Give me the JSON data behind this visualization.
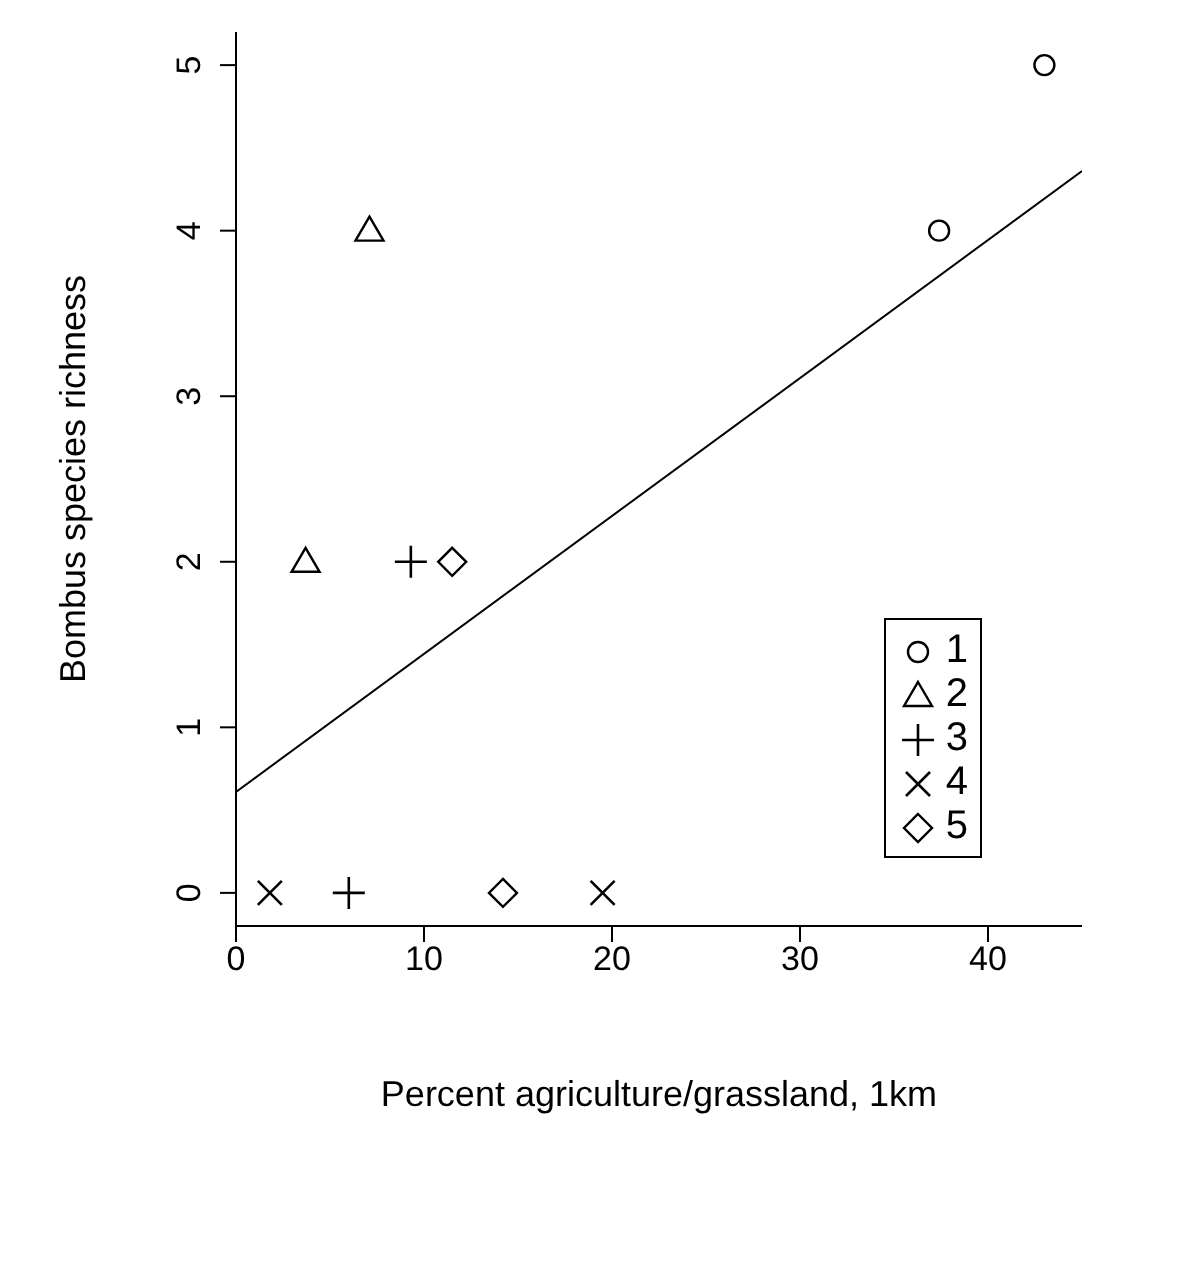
{
  "chart_data": {
    "type": "scatter",
    "xlabel": "Percent agriculture/grassland, 1km",
    "ylabel": "Bombus species richness",
    "xlim": [
      0,
      45
    ],
    "ylim": [
      -0.2,
      5.2
    ],
    "xticks": [
      0,
      10,
      20,
      30,
      40
    ],
    "yticks": [
      0,
      1,
      2,
      3,
      4,
      5
    ],
    "grid": false,
    "legend": "bottom right",
    "series": [
      {
        "name": "1",
        "color": "#000000",
        "marker": "circle",
        "x": [
          37.4,
          43
        ],
        "values": [
          4,
          5
        ]
      },
      {
        "name": "2",
        "color": "#000000",
        "marker": "triangle",
        "x": [
          7.1,
          3.7
        ],
        "values": [
          4,
          2
        ]
      },
      {
        "name": "3",
        "color": "#000000",
        "marker": "cross",
        "x": [
          9.3,
          6.0
        ],
        "values": [
          2,
          0
        ]
      },
      {
        "name": "4",
        "color": "#000000",
        "marker": "x",
        "x": [
          1.8,
          19.5
        ],
        "values": [
          0,
          0
        ]
      },
      {
        "name": "5",
        "color": "#000000",
        "marker": "diamond",
        "x": [
          11.5,
          14.2
        ],
        "values": [
          2,
          0
        ]
      },
      {
        "type": "line",
        "color": "#000000",
        "marker": "none",
        "line_style": "solid",
        "x": [
          0,
          45
        ],
        "values": [
          0.61,
          4.36
        ]
      }
    ]
  }
}
